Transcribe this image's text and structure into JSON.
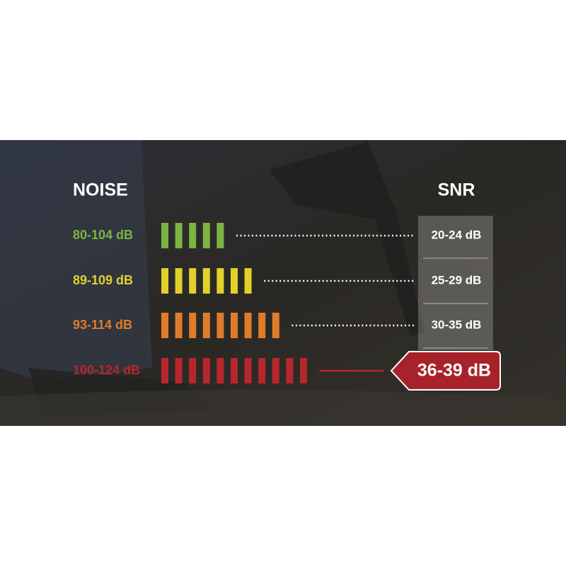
{
  "header": {
    "noise": "NOISE",
    "snr": "SNR"
  },
  "rows": [
    {
      "noise": "80-104 dB",
      "snr": "20-24 dB"
    },
    {
      "noise": "89-109 dB",
      "snr": "25-29 dB"
    },
    {
      "noise": "93-114 dB",
      "snr": "30-35 dB"
    },
    {
      "noise": "100-124 dB",
      "snr": "36-39 dB"
    }
  ]
}
